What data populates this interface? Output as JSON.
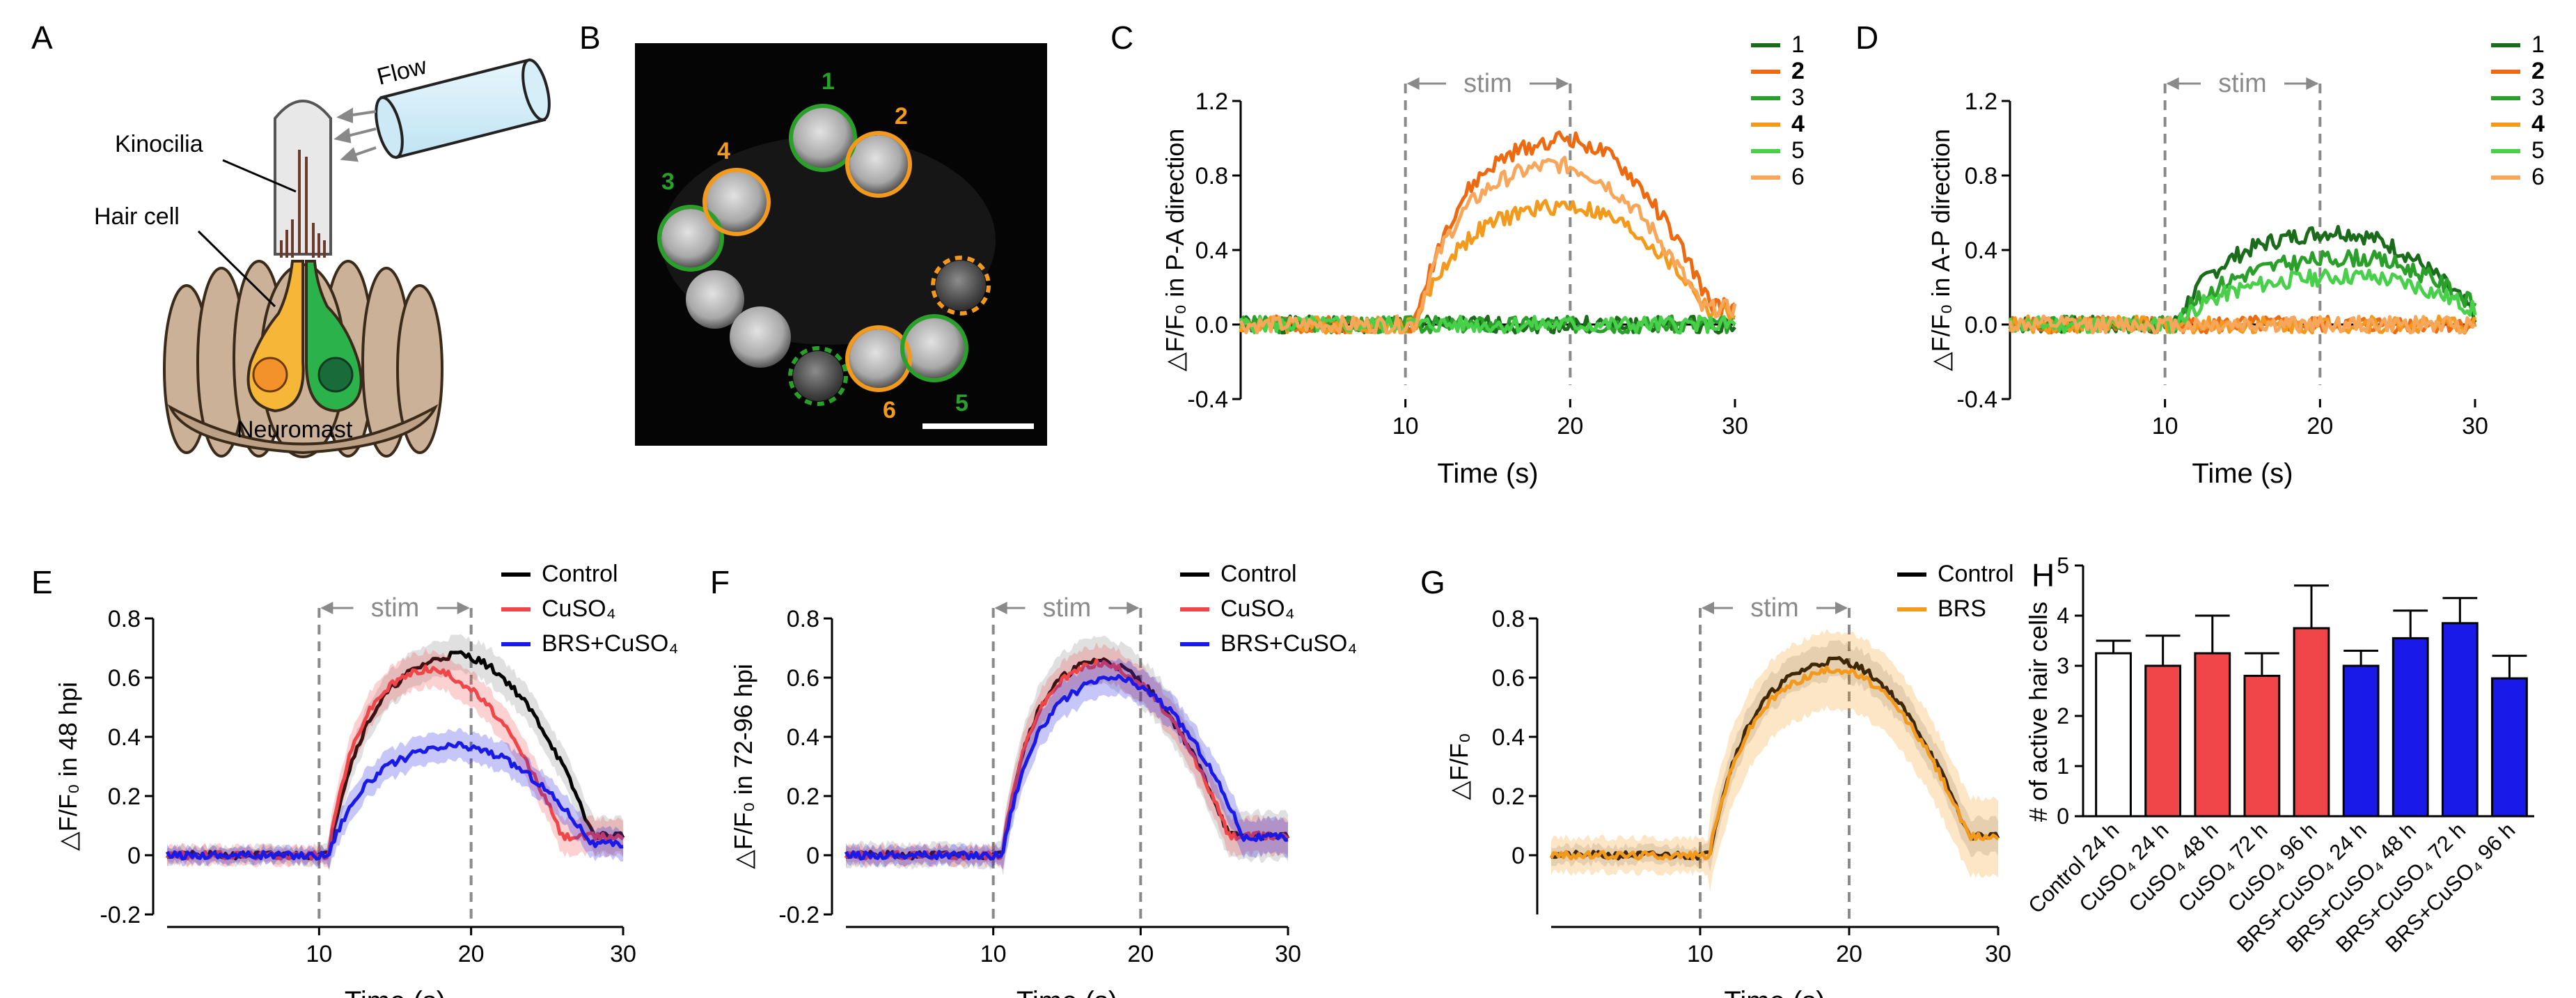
{
  "colors": {
    "dark_green": "#1a6b1a",
    "orange_dark": "#ee6a10",
    "green": "#2aa02a",
    "orange": "#f39a1c",
    "light_green": "#48d04a",
    "light_orange": "#f7a65a",
    "black": "#000000",
    "red": "#f0464a",
    "blue": "#1a1ae8",
    "grey": "#8a8a8a",
    "stim_grey": "#909090"
  },
  "panel_a": {
    "letter": "A",
    "labels": {
      "flow": "Flow",
      "kinocilia": "Kinocilia",
      "hair_cell": "Hair cell",
      "neuromast": "Neuromast"
    }
  },
  "panel_b": {
    "letter": "B",
    "cell_labels": [
      "1",
      "2",
      "3",
      "4",
      "5",
      "6"
    ]
  },
  "chart_data": [
    {
      "panel": "C",
      "type": "line",
      "title": "",
      "xlabel": "Time (s)",
      "ylabel": "△F/F₀ in P-A direction",
      "xlim": [
        0,
        30
      ],
      "ylim": [
        -0.4,
        1.2
      ],
      "xticks": [
        "10",
        "20",
        "30"
      ],
      "yticks": [
        "-0.4",
        "0.0",
        "0.4",
        "0.8",
        "1.2"
      ],
      "stim": {
        "label": "stim",
        "start": 10,
        "end": 20
      },
      "series": [
        {
          "name": "1",
          "color": "#1a6b1a",
          "bold": false,
          "peak": 0.0,
          "peak_t": 18,
          "seed": 1
        },
        {
          "name": "2",
          "color": "#ee6a10",
          "bold": true,
          "peak": 1.0,
          "peak_t": 19.5,
          "seed": 2
        },
        {
          "name": "3",
          "color": "#2aa02a",
          "bold": false,
          "peak": 0.0,
          "peak_t": 18,
          "seed": 3
        },
        {
          "name": "4",
          "color": "#f39a1c",
          "bold": true,
          "peak": 0.64,
          "peak_t": 19.5,
          "seed": 4
        },
        {
          "name": "5",
          "color": "#48d04a",
          "bold": false,
          "peak": 0.0,
          "peak_t": 18,
          "seed": 5
        },
        {
          "name": "6",
          "color": "#f7a65a",
          "bold": false,
          "peak": 0.86,
          "peak_t": 19,
          "seed": 6
        }
      ]
    },
    {
      "panel": "D",
      "type": "line",
      "title": "",
      "xlabel": "Time (s)",
      "ylabel": "△F/F₀ in A-P direction",
      "xlim": [
        0,
        30
      ],
      "ylim": [
        -0.4,
        1.2
      ],
      "xticks": [
        "10",
        "20",
        "30"
      ],
      "yticks": [
        "-0.4",
        "0.0",
        "0.4",
        "0.8",
        "1.2"
      ],
      "stim": {
        "label": "stim",
        "start": 10,
        "end": 20
      },
      "series": [
        {
          "name": "1",
          "color": "#1a6b1a",
          "bold": false,
          "peak": 0.5,
          "peak_t": 21,
          "seed": 7
        },
        {
          "name": "2",
          "color": "#ee6a10",
          "bold": true,
          "peak": 0.0,
          "peak_t": 18,
          "seed": 8
        },
        {
          "name": "3",
          "color": "#2aa02a",
          "bold": false,
          "peak": 0.36,
          "peak_t": 22,
          "seed": 9
        },
        {
          "name": "4",
          "color": "#f39a1c",
          "bold": true,
          "peak": 0.0,
          "peak_t": 18,
          "seed": 10
        },
        {
          "name": "5",
          "color": "#48d04a",
          "bold": false,
          "peak": 0.26,
          "peak_t": 22,
          "seed": 11
        },
        {
          "name": "6",
          "color": "#f7a65a",
          "bold": false,
          "peak": 0.0,
          "peak_t": 18,
          "seed": 12
        }
      ]
    },
    {
      "panel": "E",
      "type": "line",
      "xlabel": "Time (s)",
      "ylabel": "△F/F₀ in 48 hpi",
      "xlim": [
        0,
        30
      ],
      "ylim": [
        -0.2,
        0.8
      ],
      "xticks": [
        "10",
        "20",
        "30"
      ],
      "yticks": [
        "-0.2",
        "0",
        "0.2",
        "0.4",
        "0.6",
        "0.8"
      ],
      "stim": {
        "label": "stim",
        "start": 10,
        "end": 20
      },
      "series": [
        {
          "name": "Control",
          "color": "#000000",
          "peak": 0.68,
          "peak_t": 19,
          "sem": 0.05
        },
        {
          "name": "CuSO₄",
          "color": "#f0464a",
          "peak": 0.63,
          "peak_t": 17,
          "sem": 0.05
        },
        {
          "name": "BRS+CuSO₄",
          "color": "#1a1ae8",
          "peak": 0.37,
          "peak_t": 19,
          "sem": 0.04
        }
      ]
    },
    {
      "panel": "F",
      "type": "line",
      "xlabel": "Time (s)",
      "ylabel": "△F/F₀ in 72-96 hpi",
      "xlim": [
        0,
        30
      ],
      "ylim": [
        -0.2,
        0.8
      ],
      "xticks": [
        "10",
        "20",
        "30"
      ],
      "yticks": [
        "-0.2",
        "0",
        "0.2",
        "0.4",
        "0.6",
        "0.8"
      ],
      "stim": {
        "label": "stim",
        "start": 10,
        "end": 20
      },
      "series": [
        {
          "name": "Control",
          "color": "#000000",
          "peak": 0.66,
          "peak_t": 17,
          "sem": 0.07
        },
        {
          "name": "CuSO₄",
          "color": "#f0464a",
          "peak": 0.65,
          "peak_t": 17,
          "sem": 0.05
        },
        {
          "name": "BRS+CuSO₄",
          "color": "#1a1ae8",
          "peak": 0.6,
          "peak_t": 18,
          "sem": 0.05
        }
      ]
    },
    {
      "panel": "G",
      "type": "line",
      "xlabel": "Time (s)",
      "ylabel": "△F/F₀",
      "xlim": [
        0,
        30
      ],
      "ylim": [
        -0.2,
        0.8
      ],
      "xticks": [
        "10",
        "20",
        "30"
      ],
      "yticks": [
        "0",
        "0.2",
        "0.4",
        "0.6",
        "0.8"
      ],
      "stim": {
        "label": "stim",
        "start": 10,
        "end": 20
      },
      "series": [
        {
          "name": "Control",
          "color": "#000000",
          "peak": 0.66,
          "peak_t": 19,
          "sem": 0.05
        },
        {
          "name": "BRS",
          "color": "#f39a1c",
          "peak": 0.63,
          "peak_t": 19,
          "sem": 0.12
        }
      ]
    },
    {
      "panel": "H",
      "type": "bar",
      "ylabel": "# of active hair cells",
      "ylim": [
        0,
        5
      ],
      "yticks": [
        "0",
        "1",
        "2",
        "3",
        "4",
        "5"
      ],
      "categories": [
        "Control 24 h",
        "CuSO₄ 24 h",
        "CuSO₄ 48 h",
        "CuSO₄ 72 h",
        "CuSO₄ 96 h",
        "BRS+CuSO₄ 24 h",
        "BRS+CuSO₄ 48 h",
        "BRS+CuSO₄ 72 h",
        "BRS+CuSO₄ 96 h"
      ],
      "values": [
        3.25,
        3.0,
        3.25,
        2.8,
        3.75,
        3.0,
        3.55,
        3.85,
        2.75
      ],
      "errors": [
        0.25,
        0.6,
        0.75,
        0.45,
        0.85,
        0.3,
        0.55,
        0.5,
        0.45
      ],
      "bar_colors": [
        "#ffffff",
        "#f0464a",
        "#f0464a",
        "#f0464a",
        "#f0464a",
        "#1a1ae8",
        "#1a1ae8",
        "#1a1ae8",
        "#1a1ae8"
      ]
    }
  ]
}
